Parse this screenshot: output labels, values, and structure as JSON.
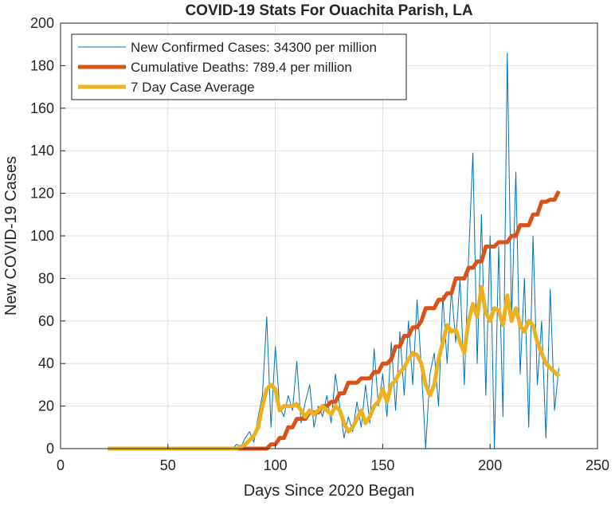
{
  "chart_data": {
    "type": "line",
    "title": "COVID-19 Stats For Ouachita Parish, LA",
    "x_label": "Days Since 2020 Began",
    "y_label": "New COVID-19 Cases",
    "xlim": [
      0,
      250
    ],
    "xticks": [
      0,
      50,
      100,
      150,
      200,
      250
    ],
    "ylim": [
      0,
      200
    ],
    "yticks": [
      0,
      20,
      40,
      60,
      80,
      100,
      120,
      140,
      160,
      180,
      200
    ],
    "grid": true,
    "legend_position": "upper-left",
    "x": [
      22,
      24,
      26,
      28,
      30,
      32,
      34,
      36,
      38,
      40,
      42,
      44,
      46,
      48,
      50,
      52,
      54,
      56,
      58,
      60,
      62,
      64,
      66,
      68,
      70,
      72,
      74,
      76,
      78,
      80,
      82,
      84,
      86,
      88,
      90,
      92,
      94,
      96,
      98,
      100,
      102,
      104,
      106,
      108,
      110,
      112,
      114,
      116,
      118,
      120,
      122,
      124,
      126,
      128,
      130,
      132,
      134,
      136,
      138,
      140,
      142,
      144,
      146,
      148,
      150,
      152,
      154,
      156,
      158,
      160,
      162,
      164,
      166,
      168,
      170,
      172,
      174,
      176,
      178,
      180,
      182,
      184,
      186,
      188,
      190,
      192,
      194,
      196,
      198,
      200,
      202,
      204,
      206,
      208,
      210,
      212,
      214,
      216,
      218,
      220,
      222,
      224,
      226,
      228,
      230,
      232
    ],
    "series": [
      {
        "name": "New Confirmed Cases: 34300 per million",
        "color": "#0072BD",
        "width": 1,
        "values": [
          0,
          0,
          0,
          0,
          0,
          0,
          0,
          0,
          0,
          0,
          0,
          0,
          0,
          0,
          0,
          0,
          0,
          0,
          0,
          0,
          0,
          0,
          0,
          0,
          0,
          0,
          0,
          0,
          0,
          0,
          2,
          1,
          5,
          8,
          3,
          15,
          25,
          62,
          10,
          48,
          20,
          15,
          25,
          18,
          41,
          12,
          22,
          30,
          10,
          20,
          15,
          25,
          12,
          35,
          20,
          5,
          15,
          8,
          22,
          10,
          30,
          12,
          47,
          20,
          35,
          15,
          50,
          18,
          55,
          25,
          60,
          30,
          70,
          38,
          0,
          35,
          45,
          20,
          72,
          40,
          75,
          50,
          80,
          30,
          90,
          139,
          40,
          110,
          25,
          100,
          0,
          95,
          15,
          186,
          60,
          130,
          35,
          80,
          10,
          100,
          30,
          60,
          5,
          75,
          18,
          38
        ]
      },
      {
        "name": "Cumulative Deaths: 789.4 per million",
        "color": "#D95319",
        "width": 5,
        "values": [
          0,
          0,
          0,
          0,
          0,
          0,
          0,
          0,
          0,
          0,
          0,
          0,
          0,
          0,
          0,
          0,
          0,
          0,
          0,
          0,
          0,
          0,
          0,
          0,
          0,
          0,
          0,
          0,
          0,
          0,
          0,
          0,
          0,
          0,
          0,
          0,
          0,
          0,
          2,
          2,
          5,
          5,
          10,
          10,
          14,
          14,
          14,
          17,
          17,
          17,
          20,
          20,
          22,
          22,
          26,
          26,
          31,
          31,
          31,
          33,
          33,
          33,
          36,
          36,
          40,
          40,
          42,
          48,
          48,
          53,
          53,
          57,
          57,
          60,
          66,
          66,
          66,
          70,
          70,
          73,
          73,
          80,
          80,
          80,
          85,
          85,
          88,
          88,
          95,
          95,
          95,
          97,
          97,
          97,
          100,
          100,
          105,
          105,
          105,
          110,
          110,
          116,
          116,
          117,
          117,
          121
        ]
      },
      {
        "name": "7 Day Case Average",
        "color": "#EDB120",
        "width": 5,
        "values": [
          0,
          0,
          0,
          0,
          0,
          0,
          0,
          0,
          0,
          0,
          0,
          0,
          0,
          0,
          0,
          0,
          0,
          0,
          0,
          0,
          0,
          0,
          0,
          0,
          0,
          0,
          0,
          0,
          0,
          0,
          0,
          1,
          2,
          4,
          6,
          10,
          20,
          28,
          30,
          28,
          18,
          20,
          20,
          20,
          21,
          18,
          15,
          18,
          16,
          18,
          20,
          18,
          16,
          20,
          18,
          12,
          8,
          10,
          14,
          18,
          12,
          15,
          20,
          22,
          28,
          22,
          30,
          32,
          36,
          38,
          42,
          45,
          44,
          40,
          30,
          25,
          30,
          42,
          50,
          58,
          55,
          56,
          50,
          45,
          60,
          68,
          62,
          76,
          64,
          60,
          66,
          65,
          58,
          72,
          60,
          66,
          58,
          55,
          60,
          58,
          50,
          45,
          40,
          38,
          36,
          34
        ]
      }
    ]
  }
}
